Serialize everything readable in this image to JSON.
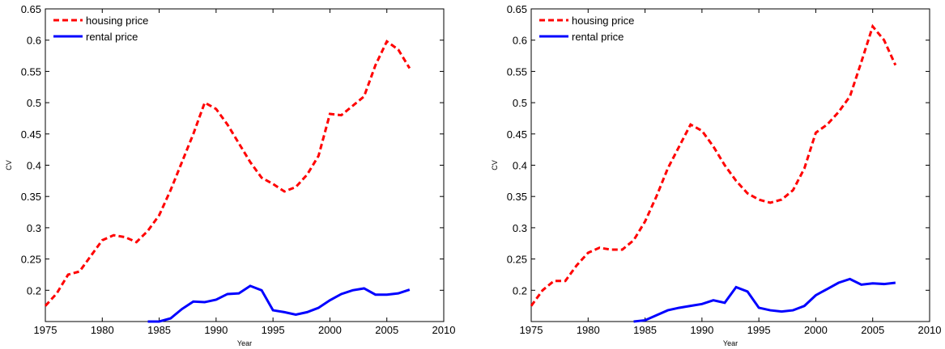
{
  "chart_data": [
    {
      "type": "line",
      "xlabel": "Year",
      "ylabel": "CV",
      "x": [
        1975,
        1976,
        1977,
        1978,
        1979,
        1980,
        1981,
        1982,
        1983,
        1984,
        1985,
        1986,
        1987,
        1988,
        1989,
        1990,
        1991,
        1992,
        1993,
        1994,
        1995,
        1996,
        1997,
        1998,
        1999,
        2000,
        2001,
        2002,
        2003,
        2004,
        2005,
        2006,
        2007
      ],
      "series": [
        {
          "name": "housing price",
          "color": "#ff0000",
          "linestyle": "dashed",
          "values": [
            0.175,
            0.195,
            0.225,
            0.23,
            0.255,
            0.28,
            0.288,
            0.285,
            0.277,
            0.295,
            0.32,
            0.36,
            0.405,
            0.45,
            0.5,
            0.49,
            0.465,
            0.435,
            0.405,
            0.38,
            0.37,
            0.358,
            0.365,
            0.385,
            0.415,
            0.482,
            0.48,
            0.495,
            0.51,
            0.56,
            0.598,
            0.585,
            0.555
          ]
        },
        {
          "name": "rental price",
          "color": "#0000ff",
          "linestyle": "solid",
          "values": [
            null,
            null,
            null,
            null,
            null,
            null,
            null,
            null,
            null,
            0.15,
            0.15,
            0.155,
            0.17,
            0.182,
            0.181,
            0.185,
            0.194,
            0.195,
            0.207,
            0.2,
            0.168,
            0.165,
            0.161,
            0.165,
            0.172,
            0.184,
            0.194,
            0.2,
            0.203,
            0.193,
            0.193,
            0.195,
            0.201
          ]
        }
      ],
      "xlim": [
        1975,
        2010
      ],
      "xticks": [
        1975,
        1980,
        1985,
        1990,
        1995,
        2000,
        2005,
        2010
      ],
      "ylim": [
        0.15,
        0.65
      ],
      "yticks": [
        0.2,
        0.25,
        0.3,
        0.35,
        0.4,
        0.45,
        0.5,
        0.55,
        0.6,
        0.65
      ],
      "legend": "upper left"
    },
    {
      "type": "line",
      "xlabel": "Year",
      "ylabel": "CV",
      "x": [
        1975,
        1976,
        1977,
        1978,
        1979,
        1980,
        1981,
        1982,
        1983,
        1984,
        1985,
        1986,
        1987,
        1988,
        1989,
        1990,
        1991,
        1992,
        1993,
        1994,
        1995,
        1996,
        1997,
        1998,
        1999,
        2000,
        2001,
        2002,
        2003,
        2004,
        2005,
        2006,
        2007
      ],
      "series": [
        {
          "name": "housing price",
          "color": "#ff0000",
          "linestyle": "dashed",
          "values": [
            0.175,
            0.2,
            0.215,
            0.215,
            0.24,
            0.26,
            0.268,
            0.265,
            0.265,
            0.28,
            0.31,
            0.35,
            0.395,
            0.43,
            0.465,
            0.455,
            0.43,
            0.4,
            0.375,
            0.355,
            0.345,
            0.34,
            0.345,
            0.36,
            0.395,
            0.452,
            0.465,
            0.485,
            0.51,
            0.565,
            0.622,
            0.6,
            0.56
          ]
        },
        {
          "name": "rental price",
          "color": "#0000ff",
          "linestyle": "solid",
          "values": [
            null,
            null,
            null,
            null,
            null,
            null,
            null,
            null,
            null,
            0.15,
            0.152,
            0.16,
            0.168,
            0.172,
            0.175,
            0.178,
            0.184,
            0.18,
            0.205,
            0.198,
            0.172,
            0.168,
            0.166,
            0.168,
            0.175,
            0.192,
            0.202,
            0.212,
            0.218,
            0.209,
            0.211,
            0.21,
            0.212
          ]
        }
      ],
      "xlim": [
        1975,
        2010
      ],
      "xticks": [
        1975,
        1980,
        1985,
        1990,
        1995,
        2000,
        2005,
        2010
      ],
      "ylim": [
        0.15,
        0.65
      ],
      "yticks": [
        0.2,
        0.25,
        0.3,
        0.35,
        0.4,
        0.45,
        0.5,
        0.55,
        0.6,
        0.65
      ],
      "legend": "upper left"
    }
  ]
}
